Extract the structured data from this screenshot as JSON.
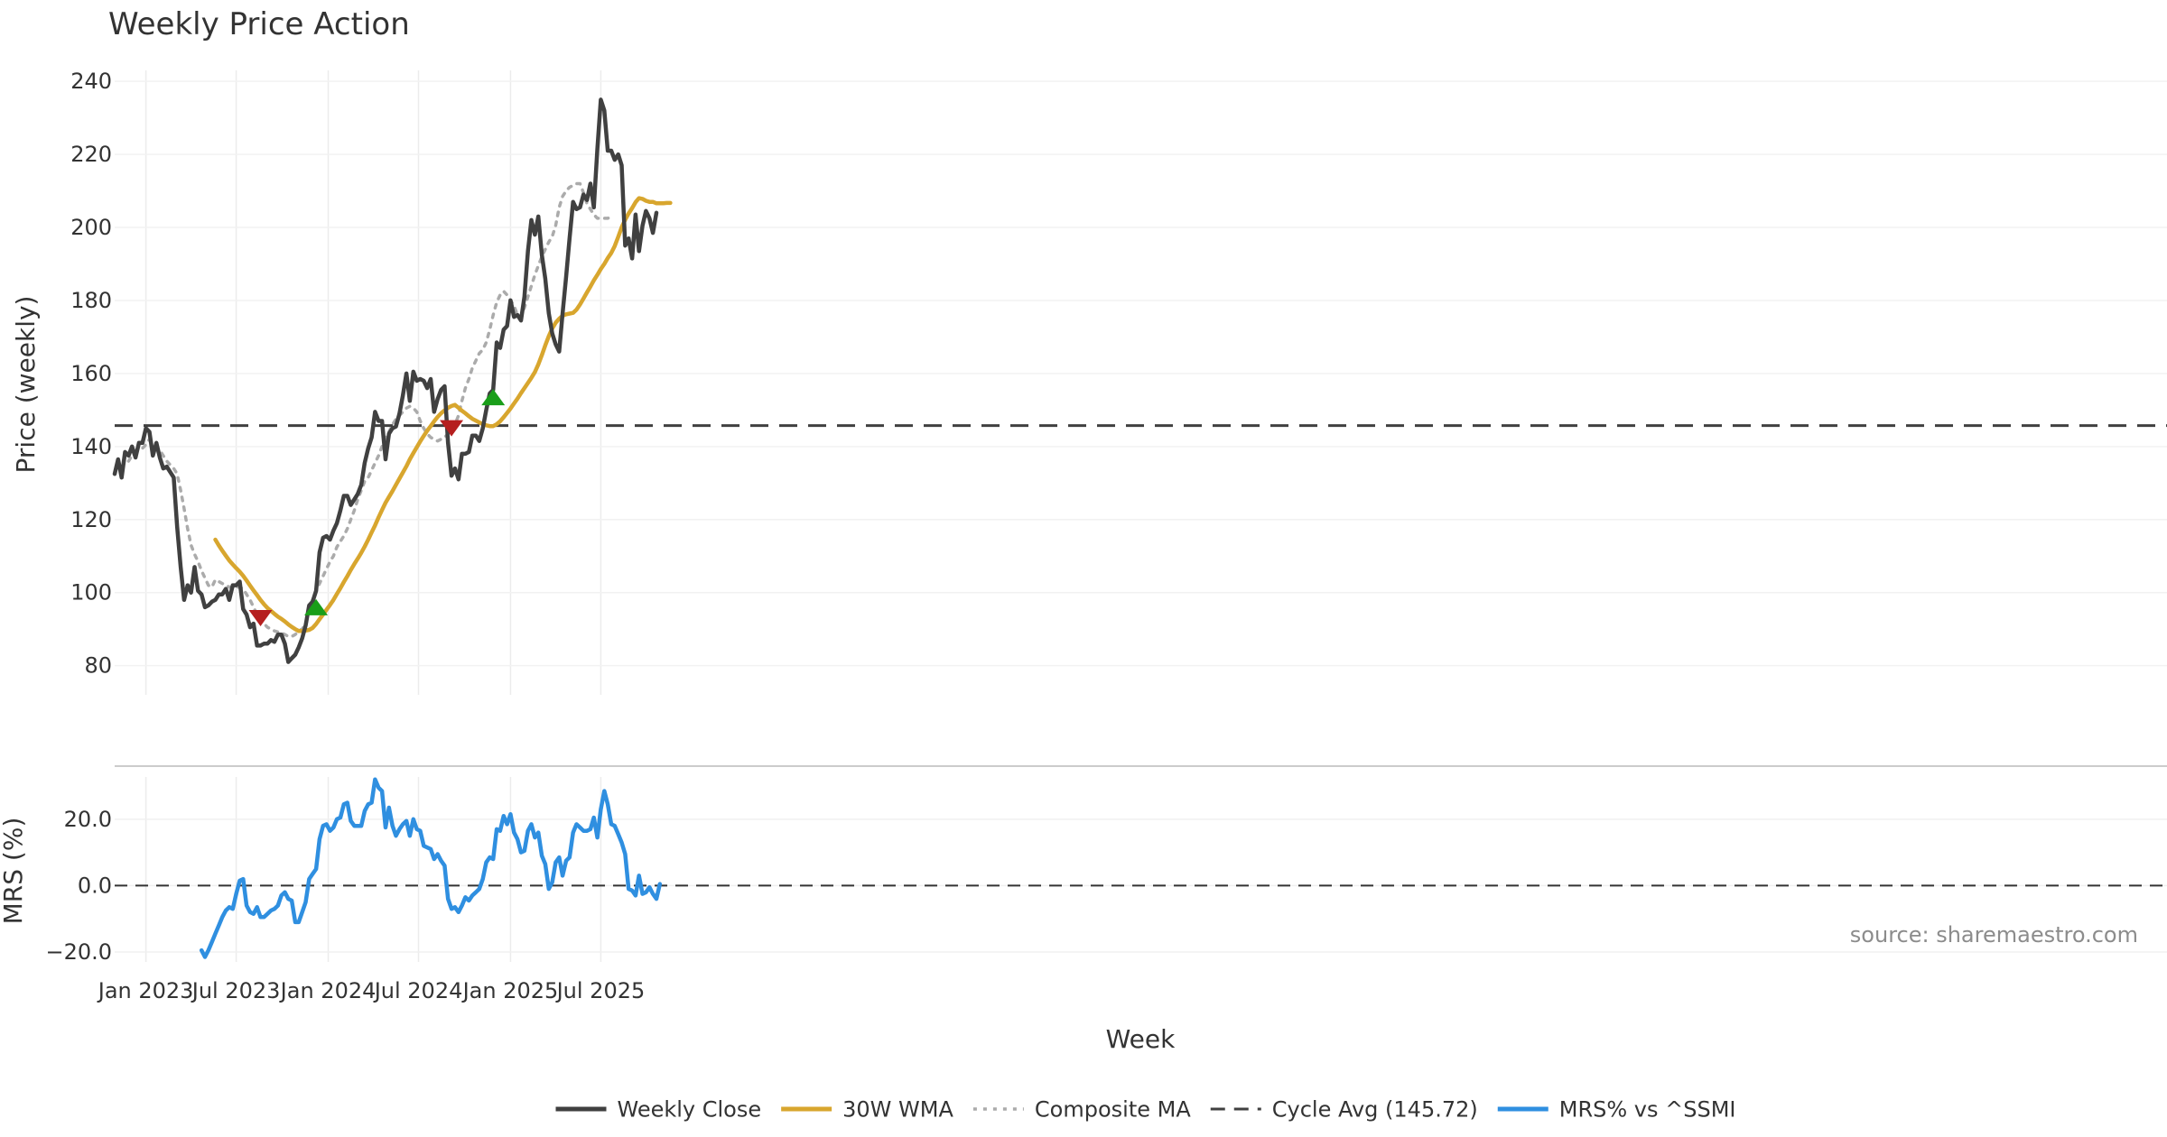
{
  "chart_data": {
    "type": "line",
    "title": "Weekly Price Action",
    "xlabel": "Week",
    "source": "source: sharemaestro.com",
    "x_ticks": [
      {
        "label": "Jan 2023",
        "week": 9
      },
      {
        "label": "Jul 2023",
        "week": 35
      },
      {
        "label": "Jan 2024",
        "week": 61.5
      },
      {
        "label": "Jul 2024",
        "week": 87.5
      },
      {
        "label": "Jan 2025",
        "week": 114
      },
      {
        "label": "Jul 2025",
        "week": 140
      }
    ],
    "price_panel": {
      "ylabel": "Price (weekly)",
      "ylim": [
        72,
        243
      ],
      "yticks": [
        80,
        100,
        120,
        140,
        160,
        180,
        200,
        220,
        240
      ],
      "series": [
        {
          "name": "Weekly Close",
          "color": "#404040",
          "style": "solid",
          "start_week": 0,
          "values": [
            132.5,
            136.5,
            131.5,
            138.5,
            137.5,
            140,
            137,
            141,
            141,
            145,
            144,
            137.5,
            141,
            137,
            134,
            134.5,
            133,
            131.5,
            118,
            107,
            98,
            102,
            100,
            107,
            100.5,
            99.5,
            96,
            96.5,
            97.5,
            98,
            99.5,
            99.5,
            101,
            98,
            102,
            102,
            103,
            95.5,
            94,
            90.5,
            91.5,
            85.5,
            85.5,
            86,
            86,
            87,
            86.5,
            88.5,
            88.5,
            86,
            81,
            82,
            83,
            85,
            87.5,
            91,
            96.5,
            97.5,
            100.5,
            111,
            115,
            115.5,
            114.5,
            117,
            119,
            122.5,
            126.5,
            126.5,
            124,
            125.5,
            127,
            129.5,
            135.5,
            139.5,
            142.5,
            149.5,
            147,
            147,
            136.5,
            143.5,
            145,
            145.5,
            149,
            154,
            160,
            152.5,
            160.5,
            158,
            158.5,
            158,
            156,
            158.5,
            149.5,
            153,
            155.5,
            156.5,
            141,
            132,
            134,
            131,
            138,
            138,
            138.5,
            143,
            143,
            141.5,
            145,
            150,
            154.5,
            155.5,
            168.5,
            167,
            172,
            173,
            180,
            175.5,
            176,
            174.5,
            181,
            193.5,
            202,
            198,
            203,
            192.5,
            186,
            176.5,
            171,
            168,
            166,
            176.5,
            186.5,
            197,
            207,
            205,
            205.5,
            209,
            207.5,
            212,
            205.5,
            221.5,
            235,
            232,
            221,
            221,
            218.5,
            220,
            217,
            195,
            197,
            191.5,
            203.5,
            193.5,
            200.5,
            204.5,
            202.5,
            198.5,
            204
          ]
        },
        {
          "name": "30W WMA",
          "color": "#D8A62E",
          "style": "solid",
          "start_week": 29,
          "values": [
            114.5,
            112.9,
            111.5,
            110.1,
            108.8,
            107.7,
            106.7,
            105.7,
            104.6,
            103.3,
            101.9,
            100.6,
            99.3,
            98,
            96.8,
            95.8,
            95,
            94.2,
            93.4,
            92.8,
            92.1,
            91.3,
            90.6,
            90,
            89.5,
            89.5,
            89.6,
            89.8,
            90.3,
            91.4,
            92.7,
            94,
            95.3,
            96.6,
            98,
            99.6,
            101.2,
            102.9,
            104.5,
            106.2,
            107.8,
            109.3,
            110.9,
            112.6,
            114.5,
            116.5,
            118.4,
            120.6,
            122.6,
            124.6,
            126.2,
            127.8,
            129.5,
            131.2,
            132.9,
            134.6,
            136.5,
            138.2,
            139.8,
            141.4,
            142.9,
            144.3,
            145.6,
            146.9,
            148.1,
            149.1,
            149.9,
            150.6,
            151.1,
            151.4,
            150.6,
            149.8,
            149.1,
            148.3,
            147.6,
            147.1,
            146.6,
            146.1,
            145.8,
            145.6,
            145.6,
            146.1,
            146.9,
            148,
            149.2,
            150.4,
            151.8,
            153.1,
            154.6,
            156,
            157.4,
            158.8,
            160.4,
            162.5,
            165,
            167.7,
            170.2,
            172.3,
            173.9,
            175,
            175.8,
            176.2,
            176.4,
            176.6,
            177.5,
            178.9,
            180.5,
            182.2,
            183.8,
            185.5,
            187,
            188.6,
            190,
            191.6,
            193,
            194.9,
            197.4,
            200,
            202.1,
            203.8,
            205.3,
            206.9,
            208,
            207.8,
            207.3,
            207,
            207,
            206.6,
            206.6,
            206.6,
            206.7,
            206.7
          ]
        },
        {
          "name": "Composite MA",
          "color": "#ABABAB",
          "style": "dotted",
          "start_week": 4,
          "values": [
            136,
            137.5,
            138.5,
            139,
            139.5,
            140.5,
            142,
            141,
            140,
            139,
            137.5,
            136,
            135,
            134,
            132.5,
            128,
            123,
            117.5,
            113,
            110.5,
            108.5,
            106,
            104,
            102,
            101.5,
            103.5,
            103,
            102.5,
            102,
            101.5,
            101.5,
            101.5,
            101.5,
            101,
            99.5,
            98,
            96,
            94,
            92,
            91.5,
            90.5,
            90,
            89.5,
            89.2,
            89,
            88.5,
            88,
            88,
            88.5,
            89.5,
            90,
            91.5,
            95,
            98,
            100.5,
            102.5,
            104.5,
            106.5,
            108.5,
            110,
            112.5,
            114,
            115.5,
            117.5,
            120,
            122.5,
            125.5,
            128,
            130.5,
            131.5,
            133.5,
            135.5,
            137.5,
            140,
            142.5,
            144,
            146,
            147.5,
            148.5,
            149.5,
            150.5,
            151,
            150.5,
            149.5,
            147,
            145,
            143.5,
            142.5,
            142,
            141.5,
            142,
            142.5,
            143.5,
            144.5,
            146,
            148.5,
            152.5,
            156,
            158.5,
            161.5,
            163.5,
            165.5,
            166.5,
            168.5,
            172,
            176,
            179.5,
            181.5,
            182.5,
            181.5,
            180,
            178.5,
            176,
            175.5,
            178,
            181,
            184,
            187,
            189.5,
            192,
            194,
            196,
            197.5,
            200.5,
            205.5,
            208.5,
            210,
            211,
            211.5,
            212,
            212,
            209.5,
            206.5,
            205,
            203.5,
            202.5,
            202.5,
            202.5,
            202.5,
            203
          ]
        },
        {
          "name": "Cycle Avg (145.72)",
          "color": "#404040",
          "style": "dashed",
          "constant": 145.72
        }
      ],
      "markers": [
        {
          "type": "sell",
          "week": 42,
          "value": 93,
          "color": "#B51F1F"
        },
        {
          "type": "buy",
          "week": 58,
          "value": 96,
          "color": "#1A9E1A"
        },
        {
          "type": "sell",
          "week": 97,
          "value": 145,
          "color": "#B51F1F"
        },
        {
          "type": "buy",
          "week": 109,
          "value": 153.5,
          "color": "#1A9E1A"
        }
      ]
    },
    "mrs_panel": {
      "ylabel": "MRS (%)",
      "ylim": [
        -23,
        36
      ],
      "yticks": [
        -20,
        0,
        20
      ],
      "ytick_labels": [
        "−20.0",
        "0.0",
        "20.0"
      ],
      "zero_line": 0,
      "series": [
        {
          "name": "MRS% vs ^SSMI",
          "color": "#2F8FE0",
          "style": "solid",
          "start_week": 25,
          "values": [
            -19.5,
            -21.5,
            -19.5,
            -17,
            -14.5,
            -12,
            -9.5,
            -7.5,
            -6.5,
            -7,
            -2.5,
            1.5,
            2,
            -6,
            -8,
            -8.5,
            -6.5,
            -9.5,
            -9.5,
            -8.5,
            -7.5,
            -7,
            -6,
            -3,
            -2,
            -4,
            -4.5,
            -11,
            -11,
            -8,
            -5,
            2,
            3.5,
            5,
            14,
            18,
            18.5,
            16.5,
            17.5,
            20,
            20.5,
            24.5,
            25,
            19.5,
            18,
            18,
            18,
            22.5,
            24.5,
            25,
            32,
            29.5,
            28.5,
            17.5,
            23.5,
            18,
            15,
            17,
            18.5,
            19.5,
            15,
            20,
            17,
            16.5,
            12,
            11.5,
            11,
            8,
            9.5,
            7.5,
            6,
            -4,
            -7,
            -6.5,
            -8,
            -6,
            -3.5,
            -4.5,
            -3,
            -2,
            -1,
            2,
            7,
            8.5,
            8,
            17,
            16.5,
            21,
            18.5,
            21.5,
            16,
            14,
            10,
            10.5,
            16.5,
            18.5,
            14.5,
            16,
            9,
            6.5,
            -1,
            1,
            7,
            8.5,
            3,
            7.5,
            8.5,
            16,
            18.5,
            17.5,
            16.5,
            16.5,
            17,
            20.5,
            14.5,
            23,
            28.5,
            24.5,
            18.5,
            18,
            15.5,
            13,
            9.5,
            -1,
            -1.5,
            -3,
            3,
            -2.5,
            -2,
            -0.5,
            -2.5,
            -4,
            0.5
          ]
        }
      ]
    },
    "legend": [
      {
        "label": "Weekly Close",
        "color": "#404040",
        "style": "solid"
      },
      {
        "label": "30W WMA",
        "color": "#D8A62E",
        "style": "solid"
      },
      {
        "label": "Composite MA",
        "color": "#ABABAB",
        "style": "dotted"
      },
      {
        "label": "Cycle Avg (145.72)",
        "color": "#404040",
        "style": "dashed"
      },
      {
        "label": "MRS% vs ^SSMI",
        "color": "#2F8FE0",
        "style": "solid"
      }
    ]
  }
}
